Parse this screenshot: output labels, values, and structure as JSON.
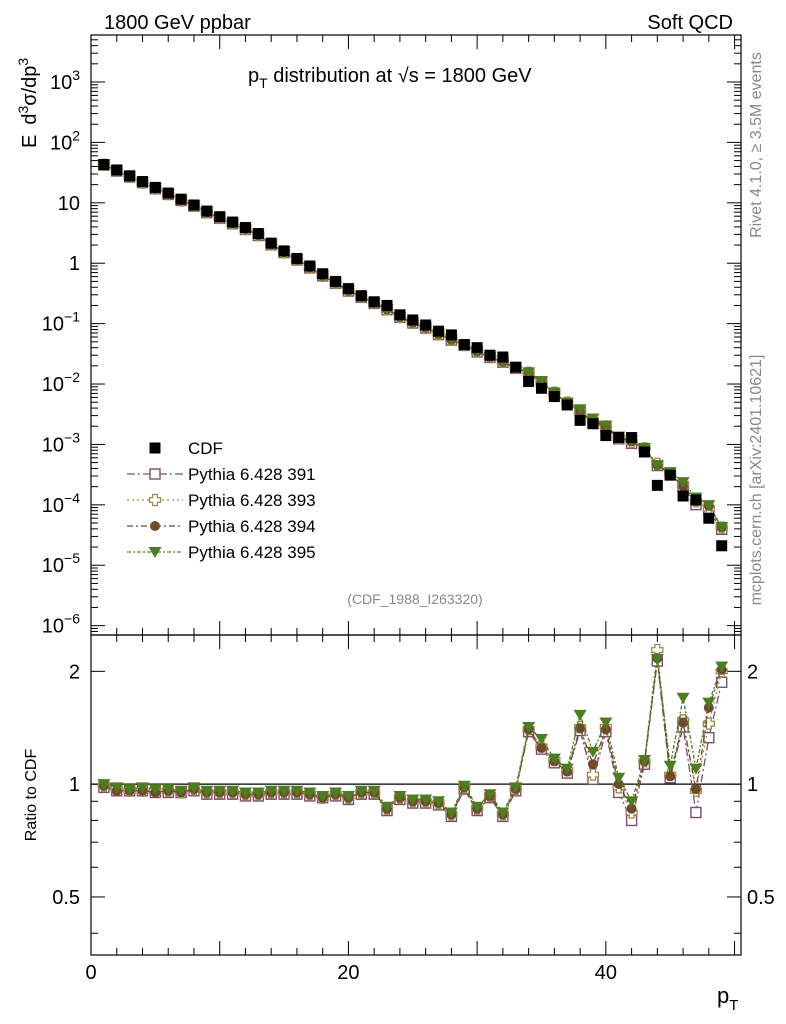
{
  "header": {
    "left": "1800 GeV ppbar",
    "right": "Soft QCD"
  },
  "side_text": {
    "top": "Rivet 4.1.0, ≥ 3.5M events",
    "bottom": "mcplots.cern.ch [arXiv:2401.10621]"
  },
  "chart_data": [
    {
      "type": "scatter",
      "panel": "main",
      "title": "p_T distribution at √s = 1800 GeV",
      "title_parts": {
        "p": "p",
        "sub": "T",
        "rest": " distribution at ",
        "sqrt": "√",
        "s_eq": "s = 1800 GeV"
      },
      "ylabel": "E  d³σ/dp³",
      "ylabel_parts": {
        "e": "E",
        "d1": "d",
        "sup1": "3",
        "mid": "σ/dp",
        "sup2": "3"
      },
      "xlabel": "",
      "yscale": "log",
      "ylim": [
        7e-07,
        6000
      ],
      "xlim": [
        0,
        50.5
      ],
      "y_ticks": [
        {
          "v": 1000,
          "base": "10",
          "exp": "3"
        },
        {
          "v": 100,
          "base": "10",
          "exp": "2"
        },
        {
          "v": 10,
          "base": "10",
          "exp": ""
        },
        {
          "v": 1,
          "base": "1",
          "exp": ""
        },
        {
          "v": 0.1,
          "base": "10",
          "exp": "−1"
        },
        {
          "v": 0.01,
          "base": "10",
          "exp": "−2"
        },
        {
          "v": 0.001,
          "base": "10",
          "exp": "−3"
        },
        {
          "v": 0.0001,
          "base": "10",
          "exp": "−4"
        },
        {
          "v": 1e-05,
          "base": "10",
          "exp": "−5"
        },
        {
          "v": 1e-06,
          "base": "10",
          "exp": "−6"
        }
      ],
      "annotation": "(CDF_1988_I263320)",
      "x": [
        1,
        2,
        3,
        4,
        5,
        6,
        7,
        8,
        9,
        10,
        11,
        12,
        13,
        14,
        15,
        16,
        17,
        18,
        19,
        20,
        21,
        22,
        23,
        24,
        25,
        26,
        27,
        28,
        29,
        30,
        31,
        32,
        33,
        34,
        35,
        36,
        37,
        38,
        39,
        40,
        41,
        42,
        43,
        44,
        45,
        46,
        47,
        48,
        49
      ],
      "cdf_values": [
        43,
        35,
        28,
        22.5,
        18,
        14.5,
        11.5,
        9.2,
        7.3,
        5.9,
        4.8,
        3.9,
        3.1,
        2.15,
        1.6,
        1.2,
        0.9,
        0.67,
        0.5,
        0.38,
        0.29,
        0.23,
        0.2,
        0.14,
        0.115,
        0.095,
        0.075,
        0.065,
        0.045,
        0.04,
        0.03,
        0.028,
        0.019,
        0.011,
        0.0085,
        0.0062,
        0.0045,
        0.0025,
        0.0022,
        0.0014,
        0.0013,
        0.0013,
        0.00075,
        0.00021,
        0.00031,
        0.00014,
        0.00012,
        6e-05,
        2.1e-05
      ],
      "series": [
        {
          "name": "Pythia 6.428 391",
          "color": "#7a4f6a",
          "marker": "open-square",
          "dash": "8,3,2,3"
        },
        {
          "name": "Pythia 6.428 393",
          "color": "#9d8a4c",
          "marker": "open-cross",
          "dash": "2,3"
        },
        {
          "name": "Pythia 6.428 394",
          "color": "#6e4a2c",
          "marker": "filled-circle",
          "dash": "6,3,2,3"
        },
        {
          "name": "Pythia 6.428 395",
          "color": "#4e7d21",
          "marker": "filled-triangle-down",
          "dash": "4,2,2,2"
        }
      ],
      "data_legend": {
        "name": "CDF",
        "color": "#000000",
        "marker": "filled-square"
      },
      "legend_position": "lower-left"
    },
    {
      "type": "line",
      "panel": "ratio",
      "ylabel": "Ratio to CDF",
      "xlabel": "p_T",
      "xlabel_parts": {
        "p": "p",
        "sub": "T"
      },
      "yscale": "log",
      "ylim": [
        0.35,
        2.5
      ],
      "xlim": [
        0,
        50.5
      ],
      "y_ticks": [
        {
          "v": 0.5,
          "label": "0.5"
        },
        {
          "v": 1,
          "label": "1"
        },
        {
          "v": 2,
          "label": "2"
        }
      ],
      "x_ticks": [
        {
          "v": 0,
          "label": "0"
        },
        {
          "v": 20,
          "label": "20"
        },
        {
          "v": 40,
          "label": "40"
        }
      ],
      "reference_line": 1,
      "x": [
        1,
        2,
        3,
        4,
        5,
        6,
        7,
        8,
        9,
        10,
        11,
        12,
        13,
        14,
        15,
        16,
        17,
        18,
        19,
        20,
        21,
        22,
        23,
        24,
        25,
        26,
        27,
        28,
        29,
        30,
        31,
        32,
        33,
        34,
        35,
        36,
        37,
        38,
        39,
        40,
        41,
        42,
        43,
        44,
        45,
        46,
        47,
        48,
        49
      ],
      "series": [
        {
          "name": "Pythia 6.428 391",
          "values": [
            0.98,
            0.96,
            0.96,
            0.96,
            0.95,
            0.95,
            0.95,
            0.96,
            0.94,
            0.94,
            0.94,
            0.93,
            0.93,
            0.94,
            0.94,
            0.94,
            0.93,
            0.92,
            0.93,
            0.91,
            0.94,
            0.94,
            0.85,
            0.91,
            0.89,
            0.89,
            0.88,
            0.82,
            0.97,
            0.85,
            0.92,
            0.82,
            0.96,
            1.38,
            1.24,
            1.14,
            1.07,
            1.39,
            1.03,
            1.38,
            0.95,
            0.8,
            1.13,
            2.13,
            1.04,
            1.42,
            0.84,
            1.33,
            1.87
          ]
        },
        {
          "name": "Pythia 6.428 393",
          "values": [
            0.99,
            0.97,
            0.96,
            0.96,
            0.96,
            0.96,
            0.95,
            0.97,
            0.95,
            0.95,
            0.95,
            0.94,
            0.94,
            0.95,
            0.95,
            0.95,
            0.94,
            0.92,
            0.94,
            0.92,
            0.95,
            0.95,
            0.86,
            0.92,
            0.9,
            0.9,
            0.89,
            0.83,
            0.98,
            0.86,
            0.93,
            0.83,
            0.97,
            1.4,
            1.26,
            1.16,
            1.09,
            1.42,
            1.06,
            1.42,
            0.98,
            0.84,
            1.15,
            2.28,
            1.06,
            1.48,
            0.96,
            1.45,
            2.0
          ]
        },
        {
          "name": "Pythia 6.428 394",
          "values": [
            0.99,
            0.96,
            0.96,
            0.96,
            0.95,
            0.96,
            0.95,
            0.97,
            0.95,
            0.95,
            0.95,
            0.94,
            0.94,
            0.95,
            0.95,
            0.95,
            0.94,
            0.92,
            0.94,
            0.92,
            0.95,
            0.95,
            0.86,
            0.92,
            0.9,
            0.9,
            0.89,
            0.83,
            0.98,
            0.86,
            0.93,
            0.83,
            0.97,
            1.4,
            1.25,
            1.15,
            1.08,
            1.41,
            1.13,
            1.4,
            1.0,
            0.86,
            1.15,
            2.17,
            1.05,
            1.46,
            0.97,
            1.6,
            2.02
          ]
        },
        {
          "name": "Pythia 6.428 395",
          "values": [
            1.0,
            0.98,
            0.97,
            0.98,
            0.97,
            0.97,
            0.96,
            0.98,
            0.96,
            0.96,
            0.96,
            0.95,
            0.95,
            0.96,
            0.96,
            0.96,
            0.95,
            0.93,
            0.95,
            0.93,
            0.96,
            0.96,
            0.87,
            0.93,
            0.91,
            0.91,
            0.9,
            0.84,
            0.99,
            0.87,
            0.94,
            0.84,
            0.98,
            1.42,
            1.32,
            1.17,
            1.1,
            1.53,
            1.22,
            1.46,
            1.04,
            0.9,
            1.16,
            2.16,
            1.12,
            1.7,
            1.1,
            1.65,
            2.06
          ]
        }
      ]
    }
  ]
}
